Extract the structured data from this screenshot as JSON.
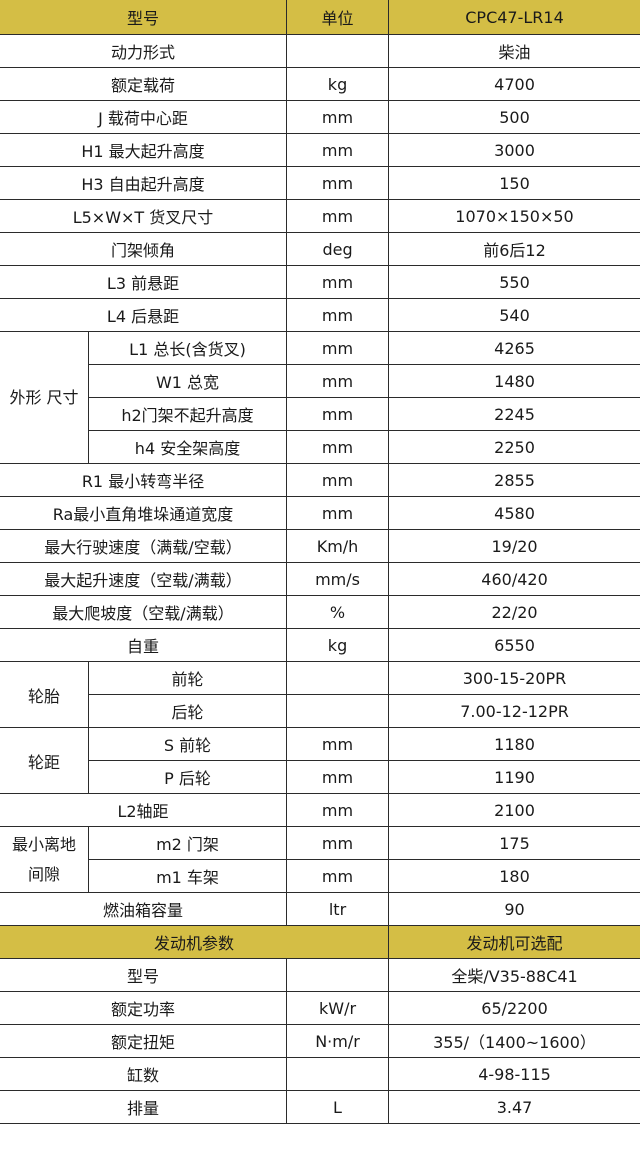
{
  "header": {
    "model_label": "型号",
    "unit_label": "单位",
    "model_value": "CPC47-LR14"
  },
  "specs": [
    {
      "label": "动力形式",
      "unit": "",
      "value": "柴油"
    },
    {
      "label": "额定载荷",
      "unit": "kg",
      "value": "4700"
    },
    {
      "label": "J 载荷中心距",
      "unit": "mm",
      "value": "500"
    },
    {
      "label": "H1 最大起升高度",
      "unit": "mm",
      "value": "3000"
    },
    {
      "label": "H3 自由起升高度",
      "unit": "mm",
      "value": "150"
    },
    {
      "label": "L5×W×T 货叉尺寸",
      "unit": "mm",
      "value": "1070×150×50"
    },
    {
      "label": "门架倾角",
      "unit": "deg",
      "value": "前6后12"
    },
    {
      "label": "L3 前悬距",
      "unit": "mm",
      "value": "550"
    },
    {
      "label": "L4 后悬距",
      "unit": "mm",
      "value": "540"
    },
    {
      "group": "外形 尺寸",
      "label": "L1 总长(含货叉)",
      "unit": "mm",
      "value": "4265"
    },
    {
      "group": "外形 尺寸",
      "label": "W1 总宽",
      "unit": "mm",
      "value": "1480"
    },
    {
      "group": "外形 尺寸",
      "label": "h2门架不起升高度",
      "unit": "mm",
      "value": "2245"
    },
    {
      "group": "外形 尺寸",
      "label": "h4 安全架高度",
      "unit": "mm",
      "value": "2250"
    },
    {
      "label": "R1 最小转弯半径",
      "unit": "mm",
      "value": "2855"
    },
    {
      "label": "Ra最小直角堆垛通道宽度",
      "unit": "mm",
      "value": "4580"
    },
    {
      "label": "最大行驶速度（满载/空载）",
      "unit": "Km/h",
      "value": "19/20"
    },
    {
      "label": "最大起升速度（空载/满载）",
      "unit": "mm/s",
      "value": "460/420"
    },
    {
      "label": "最大爬坡度（空载/满载）",
      "unit": "%",
      "value": "22/20"
    },
    {
      "label": "自重",
      "unit": "kg",
      "value": "6550"
    },
    {
      "group": "轮胎",
      "label": "前轮",
      "unit": "",
      "value": "300-15-20PR"
    },
    {
      "group": "轮胎",
      "label": "后轮",
      "unit": "",
      "value": "7.00-12-12PR"
    },
    {
      "group": "轮距",
      "label": "S 前轮",
      "unit": "mm",
      "value": "1180"
    },
    {
      "group": "轮距",
      "label": "P 后轮",
      "unit": "mm",
      "value": "1190"
    },
    {
      "label": "L2轴距",
      "unit": "mm",
      "value": "2100"
    },
    {
      "group": "最小离地间隙",
      "label": "m2 门架",
      "unit": "mm",
      "value": "175"
    },
    {
      "group": "最小离地间隙",
      "label": "m1 车架",
      "unit": "mm",
      "value": "180"
    },
    {
      "label": "燃油箱容量",
      "unit": "ltr",
      "value": "90"
    }
  ],
  "engine_header": {
    "label": "发动机参数",
    "value": "发动机可选配"
  },
  "engine": [
    {
      "label": "型号",
      "unit": "",
      "value": "全柴/V35-88C41"
    },
    {
      "label": "额定功率",
      "unit": "kW/r",
      "value": "65/2200"
    },
    {
      "label": "额定扭矩",
      "unit": "N·m/r",
      "value": "355/（1400~1600）"
    },
    {
      "label": "缸数",
      "unit": "",
      "value": "4-98-115"
    },
    {
      "label": "排量",
      "unit": "L",
      "value": "3.47"
    }
  ],
  "colors": {
    "header_bg": "#D4BE45",
    "border": "#2b2b2b"
  }
}
